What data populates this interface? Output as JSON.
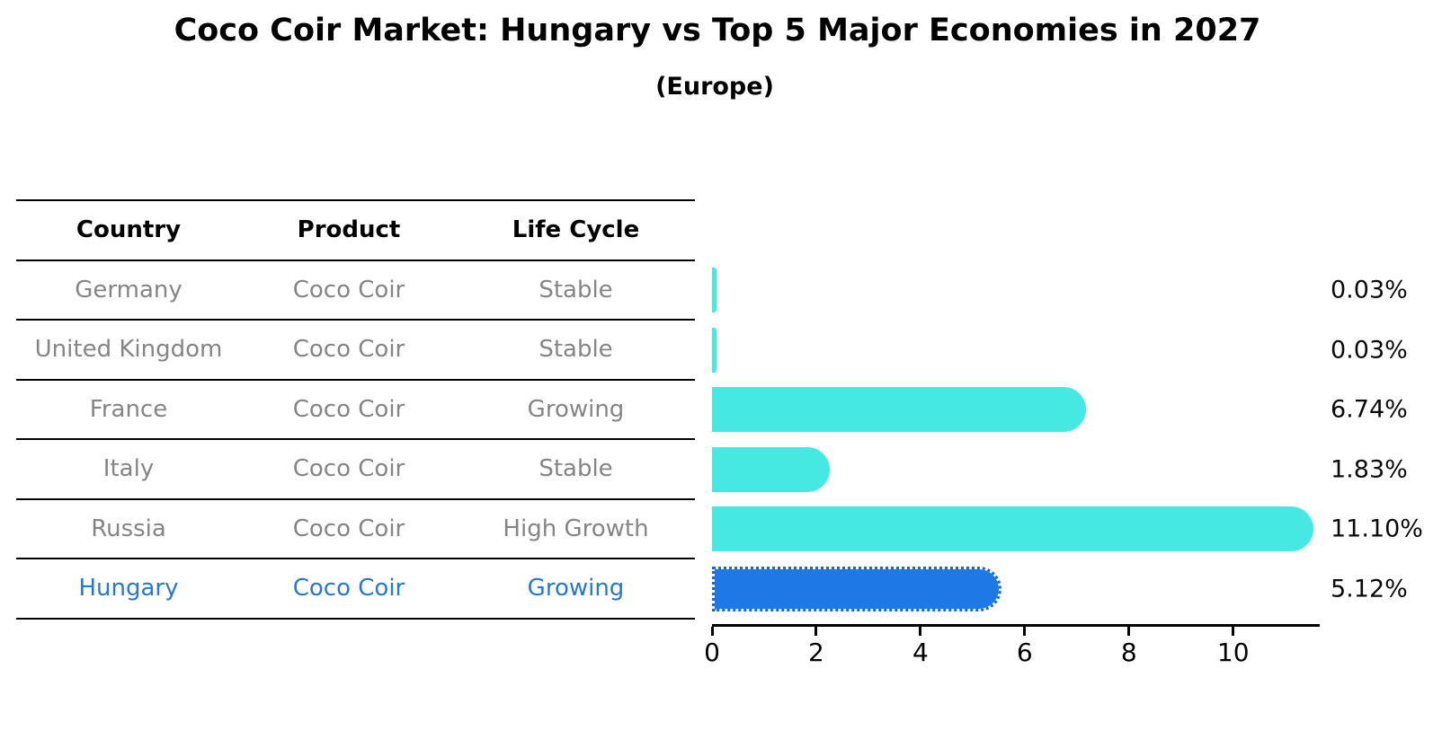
{
  "title": "Coco Coir Market: Hungary vs Top 5 Major Economies in 2027",
  "subtitle": "(Europe)",
  "table": {
    "columns": [
      "Country",
      "Product",
      "Life Cycle"
    ],
    "rows": [
      {
        "country": "Germany",
        "product": "Coco Coir",
        "life_cycle": "Stable",
        "highlight": false
      },
      {
        "country": "United Kingdom",
        "product": "Coco Coir",
        "life_cycle": "Stable",
        "highlight": false
      },
      {
        "country": "France",
        "product": "Coco Coir",
        "life_cycle": "Growing",
        "highlight": false
      },
      {
        "country": "Italy",
        "product": "Coco Coir",
        "life_cycle": "Stable",
        "highlight": false
      },
      {
        "country": "Russia",
        "product": "Coco Coir",
        "life_cycle": "High Growth",
        "highlight": false
      },
      {
        "country": "Hungary",
        "product": "Coco Coir",
        "life_cycle": "Growing",
        "highlight": true
      }
    ]
  },
  "chart_data": {
    "type": "bar",
    "orientation": "horizontal",
    "title": "Coco Coir Market: Hungary vs Top 5 Major Economies in 2027",
    "subtitle": "(Europe)",
    "categories": [
      "Germany",
      "United Kingdom",
      "France",
      "Italy",
      "Russia",
      "Hungary"
    ],
    "values": [
      0.03,
      0.03,
      6.74,
      1.83,
      11.1,
      5.12
    ],
    "value_labels": [
      "0.03%",
      "0.03%",
      "6.74%",
      "1.83%",
      "11.10%",
      "5.12%"
    ],
    "xlabel": "",
    "ylabel": "",
    "xlim": [
      0,
      11.66
    ],
    "xticks": [
      0,
      2,
      4,
      6,
      8,
      10
    ],
    "grid": false,
    "legend": "none",
    "bar_color": "#46E8E2",
    "highlight_color": "#1E78E6",
    "highlight_index": 5,
    "highlight_text_color": "#2878CD"
  }
}
